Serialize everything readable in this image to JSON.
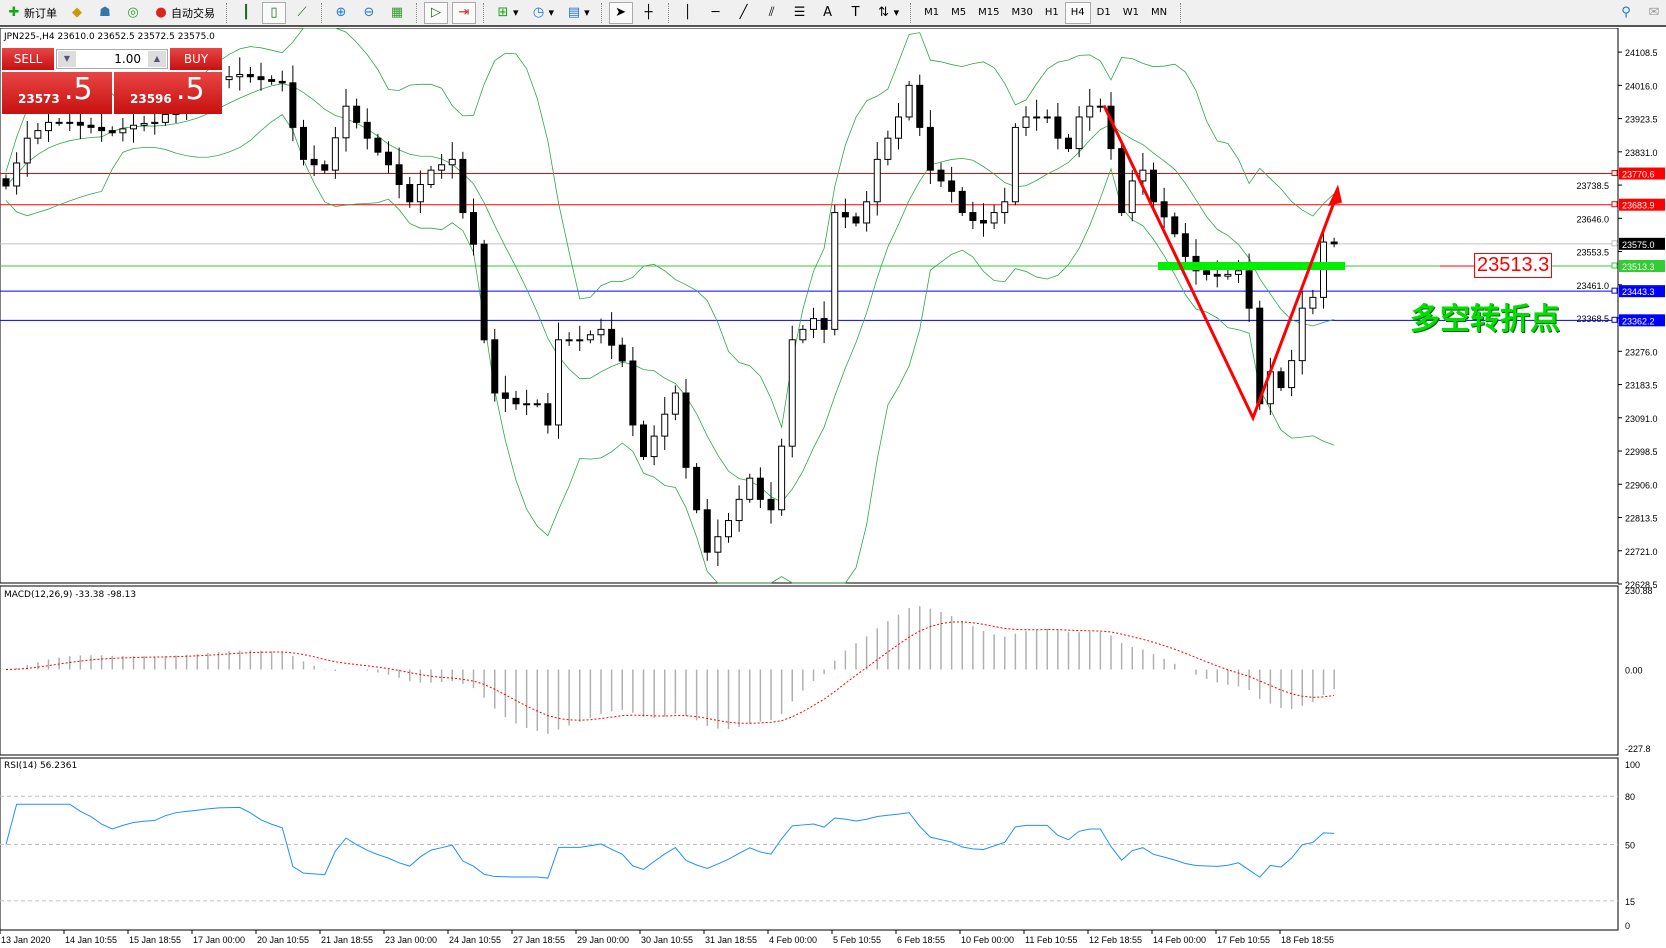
{
  "toolbar": {
    "new_order": "新订单",
    "auto_trading": "自动交易",
    "timeframes": [
      "M1",
      "M5",
      "M15",
      "M30",
      "H1",
      "H4",
      "D1",
      "W1",
      "MN"
    ],
    "active_timeframe": "H4"
  },
  "symbol_header": "JPN225-,H4  23610.0 23652.5 23572.5 23575.0",
  "trade_panel": {
    "sell_label": "SELL",
    "buy_label": "BUY",
    "lot": "1.00",
    "sell_big": "23573",
    "sell_small": ".5",
    "buy_big": "23596",
    "buy_small": ".5"
  },
  "price_axis": [
    "24108.5",
    "24016.0",
    "23923.5",
    "23831.0",
    "23738.5",
    "23646.0",
    "23553.5",
    "23461.0",
    "23368.5",
    "23276.0",
    "23183.5",
    "23091.0",
    "22998.5",
    "22906.0",
    "22813.5",
    "22721.0",
    "22628.5"
  ],
  "price_range": [
    22628.5,
    24108.5
  ],
  "hlines": [
    {
      "price": 23770.6,
      "label": "23770.6",
      "color": "#ff0000"
    },
    {
      "price": 23683.9,
      "label": "23683.9",
      "color": "#ff0000"
    },
    {
      "price": 23575.0,
      "label": "23575.0",
      "color": "#000000",
      "line": "#c0c0c0"
    },
    {
      "price": 23513.3,
      "label": "23513.3",
      "color": "#33cc33"
    },
    {
      "price": 23443.3,
      "label": "23443.3",
      "color": "#0000ff"
    },
    {
      "price": 23362.2,
      "label": "23362.2",
      "color": "#0000ff"
    }
  ],
  "annotations": {
    "price_label": "23513.3",
    "text": "多空转折点",
    "text_color": "#00e000",
    "trend_color": "#ff0000",
    "zone_color": "#00ee00"
  },
  "macd": {
    "label": "MACD(12,26,9) -33.38 -98.13",
    "axis": [
      "230.88",
      "0.00",
      "-227.8"
    ],
    "range": [
      -227.8,
      230.88
    ]
  },
  "rsi": {
    "label": "RSI(14) 56.2361",
    "axis": [
      "100",
      "80",
      "50",
      "15",
      "0"
    ],
    "levels": [
      80,
      50,
      15
    ]
  },
  "time_axis": [
    "13 Jan 2020",
    "14 Jan 10:55",
    "15 Jan 18:55",
    "17 Jan 00:00",
    "20 Jan 10:55",
    "21 Jan 18:55",
    "23 Jan 00:00",
    "24 Jan 10:55",
    "27 Jan 18:55",
    "29 Jan 00:00",
    "30 Jan 10:55",
    "31 Jan 18:55",
    "4 Feb 00:00",
    "5 Feb 10:55",
    "6 Feb 18:55",
    "10 Feb 00:00",
    "11 Feb 10:55",
    "12 Feb 18:55",
    "14 Feb 00:00",
    "17 Feb 10:55",
    "18 Feb 18:55"
  ],
  "chart_data": {
    "type": "candlestick",
    "closes": [
      23736,
      23800,
      23869,
      23890,
      23913,
      23913,
      23913,
      23905,
      23899,
      23890,
      23884,
      23895,
      23905,
      23910,
      23913,
      23935,
      23958,
      23972,
      23987,
      24010,
      24032,
      24040,
      24046,
      24040,
      24032,
      24027,
      24023,
      23899,
      23810,
      23795,
      23780,
      23870,
      23958,
      23913,
      23869,
      23830,
      23795,
      23740,
      23692,
      23740,
      23780,
      23795,
      23810,
      23662,
      23574,
      23308,
      23160,
      23145,
      23130,
      23130,
      23130,
      23071,
      23308,
      23308,
      23308,
      23322,
      23337,
      23293,
      23249,
      23071,
      22983,
      23040,
      23101,
      23160,
      22953,
      22835,
      22717,
      22760,
      22805,
      22864,
      22923,
      22864,
      22835,
      23012,
      23308,
      23337,
      23367,
      23337,
      23662,
      23650,
      23633,
      23692,
      23810,
      23869,
      23928,
      24016,
      23899,
      23780,
      23750,
      23721,
      23662,
      23640,
      23633,
      23662,
      23692,
      23899,
      23928,
      23928,
      23928,
      23869,
      23840,
      23928,
      23958,
      23958,
      23840,
      23662,
      23750,
      23780,
      23692,
      23650,
      23603,
      23540,
      23500,
      23490,
      23485,
      23490,
      23500,
      23396,
      23130,
      23219,
      23175,
      23250,
      23396,
      23426,
      23580,
      23575
    ],
    "indicators": [
      "Bollinger Bands",
      "MACD(12,26,9)",
      "RSI(14)"
    ]
  }
}
